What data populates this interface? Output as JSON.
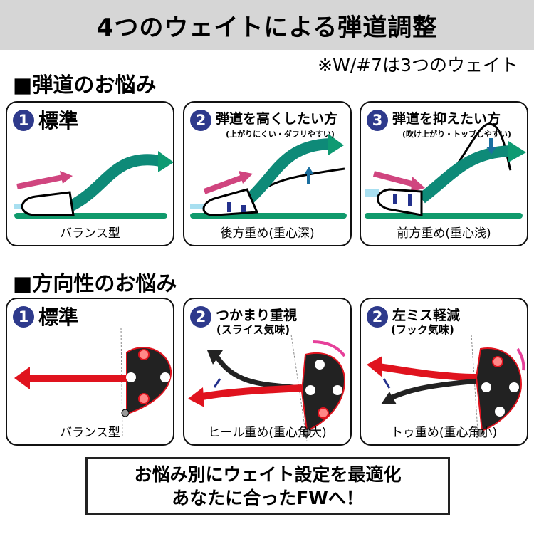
{
  "title": "4つのウェイトによる弾道調整",
  "note": "※W/#7は3つのウェイト",
  "section1": {
    "heading": "■弾道のお悩み",
    "panels": [
      {
        "num": "1",
        "title": "標準",
        "subtitle": "",
        "label": "バランス型"
      },
      {
        "num": "2",
        "title": "弾道を高くしたい方",
        "subtitle": "(上がりにくい・ダフリやすい)",
        "label": "後方重め(重心深)"
      },
      {
        "num": "3",
        "title": "弾道を抑えたい方",
        "subtitle": "(吹け上がり・トップしやすい)",
        "label": "前方重め(重心浅)"
      }
    ]
  },
  "section2": {
    "heading": "■方向性のお悩み",
    "panels": [
      {
        "num": "1",
        "title": "標準",
        "subtitle": "",
        "label": "バランス型"
      },
      {
        "num": "2",
        "title": "つかまり重視",
        "subtitle": "(スライス気味)",
        "label": "ヒール重め(重心角大)"
      },
      {
        "num": "2",
        "title": "左ミス軽減",
        "subtitle": "(フック気味)",
        "label": "トゥ重め(重心角小)"
      }
    ]
  },
  "footer": {
    "line1": "お悩み別にウェイト設定を最適化",
    "line2": "あなたに合ったFWへ！"
  },
  "colors": {
    "number_badge": "#2e3a8c",
    "trajectory": "#0e9a72",
    "swing_arrow": "#d0457f",
    "direction_arrow": "#e0131e",
    "ground": "#109a6c"
  }
}
